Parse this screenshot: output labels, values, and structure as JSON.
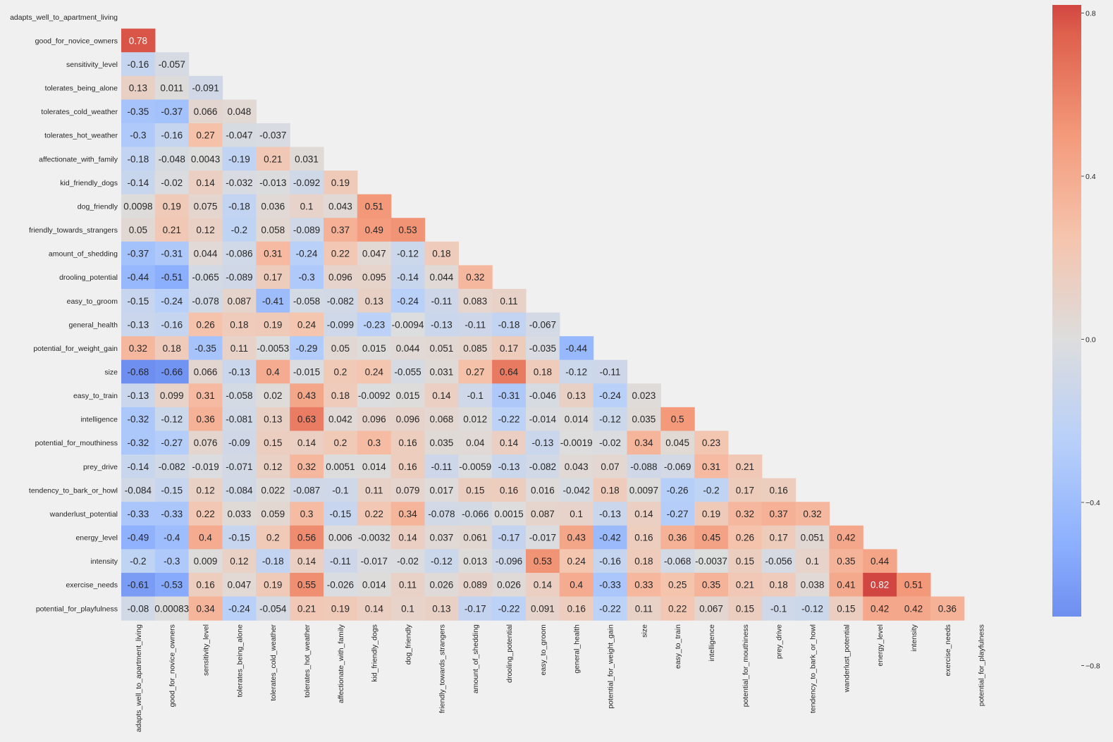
{
  "chart_data": {
    "type": "heatmap",
    "title": "",
    "xlabel": "",
    "ylabel": "",
    "colormap": "coolwarm",
    "mask": "upper-triangle-including-diagonal",
    "vmin": -1,
    "vmax": 1,
    "variables": [
      "adapts_well_to_apartment_living",
      "good_for_novice_owners",
      "sensitivity_level",
      "tolerates_being_alone",
      "tolerates_cold_weather",
      "tolerates_hot_weather",
      "affectionate_with_family",
      "kid_friendly_dogs",
      "dog_friendly",
      "friendly_towards_strangers",
      "amount_of_shedding",
      "drooling_potential",
      "easy_to_groom",
      "general_health",
      "potential_for_weight_gain",
      "size",
      "easy_to_train",
      "intelligence",
      "potential_for_mouthiness",
      "prey_drive",
      "tendency_to_bark_or_howl",
      "wanderlust_potential",
      "energy_level",
      "intensity",
      "exercise_needs",
      "potential_for_playfulness"
    ],
    "rows": [
      [],
      [
        "0.78"
      ],
      [
        "-0.16",
        "-0.057"
      ],
      [
        "0.13",
        "0.011",
        "-0.091"
      ],
      [
        "-0.35",
        "-0.37",
        "0.066",
        "0.048"
      ],
      [
        "-0.3",
        "-0.16",
        "0.27",
        "-0.047",
        "-0.037"
      ],
      [
        "-0.18",
        "-0.048",
        "0.0043",
        "-0.19",
        "0.21",
        "0.031"
      ],
      [
        "-0.14",
        "-0.02",
        "0.14",
        "-0.032",
        "-0.013",
        "-0.092",
        "0.19"
      ],
      [
        "0.0098",
        "0.19",
        "0.075",
        "-0.18",
        "0.036",
        "0.1",
        "0.043",
        "0.51"
      ],
      [
        "0.05",
        "0.21",
        "0.12",
        "-0.2",
        "0.058",
        "-0.089",
        "0.37",
        "0.49",
        "0.53"
      ],
      [
        "-0.37",
        "-0.31",
        "0.044",
        "-0.086",
        "0.31",
        "-0.24",
        "0.22",
        "0.047",
        "-0.12",
        "0.18"
      ],
      [
        "-0.44",
        "-0.51",
        "-0.065",
        "-0.089",
        "0.17",
        "-0.3",
        "0.096",
        "0.095",
        "-0.14",
        "0.044",
        "0.32"
      ],
      [
        "-0.15",
        "-0.24",
        "-0.078",
        "0.087",
        "-0.41",
        "-0.058",
        "-0.082",
        "0.13",
        "-0.24",
        "-0.11",
        "0.083",
        "0.11"
      ],
      [
        "-0.13",
        "-0.16",
        "0.26",
        "0.18",
        "0.19",
        "0.24",
        "-0.099",
        "-0.23",
        "-0.0094",
        "-0.13",
        "-0.11",
        "-0.18",
        "-0.067"
      ],
      [
        "0.32",
        "0.18",
        "-0.35",
        "0.11",
        "-0.0053",
        "-0.29",
        "0.05",
        "0.015",
        "0.044",
        "0.051",
        "0.085",
        "0.17",
        "-0.035",
        "-0.44"
      ],
      [
        "-0.68",
        "-0.66",
        "0.066",
        "-0.13",
        "0.4",
        "-0.015",
        "0.2",
        "0.24",
        "-0.055",
        "0.031",
        "0.27",
        "0.64",
        "0.18",
        "-0.12",
        "-0.11"
      ],
      [
        "-0.13",
        "0.099",
        "0.31",
        "-0.058",
        "0.02",
        "0.43",
        "0.18",
        "-0.0092",
        "0.015",
        "0.14",
        "-0.1",
        "-0.31",
        "-0.046",
        "0.13",
        "-0.24",
        "0.023"
      ],
      [
        "-0.32",
        "-0.12",
        "0.36",
        "-0.081",
        "0.13",
        "0.63",
        "0.042",
        "0.096",
        "0.096",
        "0.068",
        "0.012",
        "-0.22",
        "-0.014",
        "0.014",
        "-0.12",
        "0.035",
        "0.5"
      ],
      [
        "-0.32",
        "-0.27",
        "0.076",
        "-0.09",
        "0.15",
        "0.14",
        "0.2",
        "0.3",
        "0.16",
        "0.035",
        "0.04",
        "0.14",
        "-0.13",
        "-0.0019",
        "-0.02",
        "0.34",
        "0.045",
        "0.23"
      ],
      [
        "-0.14",
        "-0.082",
        "-0.019",
        "-0.071",
        "0.12",
        "0.32",
        "0.0051",
        "0.014",
        "0.16",
        "-0.11",
        "-0.0059",
        "-0.13",
        "-0.082",
        "0.043",
        "0.07",
        "-0.088",
        "-0.069",
        "0.31",
        "0.21"
      ],
      [
        "-0.084",
        "-0.15",
        "0.12",
        "-0.084",
        "0.022",
        "-0.087",
        "-0.1",
        "0.11",
        "0.079",
        "0.017",
        "0.15",
        "0.16",
        "0.016",
        "-0.042",
        "0.18",
        "0.0097",
        "-0.26",
        "-0.2",
        "0.17",
        "0.16"
      ],
      [
        "-0.33",
        "-0.33",
        "0.22",
        "0.033",
        "0.059",
        "0.3",
        "-0.15",
        "0.22",
        "0.34",
        "-0.078",
        "-0.066",
        "0.0015",
        "0.087",
        "0.1",
        "-0.13",
        "0.14",
        "-0.27",
        "0.19",
        "0.32",
        "0.37",
        "0.32"
      ],
      [
        "-0.49",
        "-0.4",
        "0.4",
        "-0.15",
        "0.2",
        "0.56",
        "0.006",
        "-0.0032",
        "0.14",
        "0.037",
        "0.061",
        "-0.17",
        "-0.017",
        "0.43",
        "-0.42",
        "0.16",
        "0.36",
        "0.45",
        "0.26",
        "0.17",
        "0.051",
        "0.42"
      ],
      [
        "-0.2",
        "-0.3",
        "0.009",
        "0.12",
        "-0.18",
        "0.14",
        "-0.11",
        "-0.017",
        "-0.02",
        "-0.12",
        "0.013",
        "-0.096",
        "0.53",
        "0.24",
        "-0.16",
        "0.18",
        "-0.068",
        "-0.0037",
        "0.15",
        "-0.056",
        "0.1",
        "0.35",
        "0.44"
      ],
      [
        "-0.61",
        "-0.53",
        "0.16",
        "0.047",
        "0.19",
        "0.55",
        "-0.026",
        "0.014",
        "0.11",
        "0.026",
        "0.089",
        "0.026",
        "0.14",
        "0.4",
        "-0.33",
        "0.33",
        "0.25",
        "0.35",
        "0.21",
        "0.18",
        "0.038",
        "0.41",
        "0.82",
        "0.51"
      ],
      [
        "-0.08",
        "0.00083",
        "0.34",
        "-0.24",
        "-0.054",
        "0.21",
        "0.19",
        "0.14",
        "0.1",
        "0.13",
        "-0.17",
        "-0.22",
        "0.091",
        "0.16",
        "-0.22",
        "0.11",
        "0.22",
        "0.067",
        "0.15",
        "-0.1",
        "-0.12",
        "0.15",
        "0.42",
        "0.42",
        "0.36"
      ]
    ],
    "colorbar": {
      "ticks": [
        "0.8",
        "0.4",
        "0.0",
        "−0.4",
        "−0.8"
      ]
    }
  }
}
